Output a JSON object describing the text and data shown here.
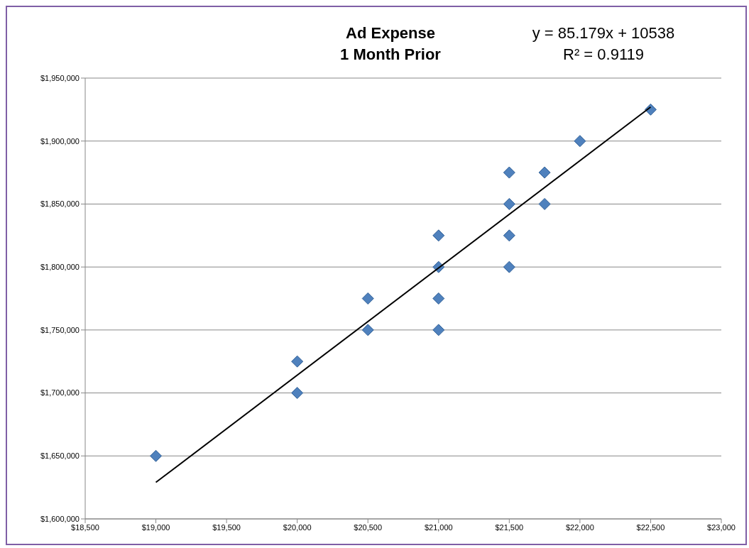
{
  "chart_data": {
    "type": "scatter",
    "title": "Ad Expense\n1 Month Prior",
    "annotations": [
      "y = 85.179x + 10538",
      "R² = 0.9119"
    ],
    "series": [
      {
        "marker": "diamond",
        "color": "#4f81bd",
        "x": [
          19000,
          20000,
          20000,
          20500,
          20500,
          21000,
          21000,
          21000,
          21000,
          21500,
          21500,
          21500,
          21500,
          21750,
          21750,
          22000,
          22500
        ],
        "values": [
          1650000,
          1725000,
          1700000,
          1775000,
          1750000,
          1825000,
          1800000,
          1775000,
          1750000,
          1875000,
          1850000,
          1825000,
          1800000,
          1875000,
          1850000,
          1900000,
          1925000
        ]
      },
      {
        "type": "line",
        "marker": "none",
        "color": "#000000",
        "x": [
          19000,
          22500
        ],
        "values": [
          1629000,
          1927000
        ]
      }
    ],
    "xlim": [
      18500,
      23000
    ],
    "xticks": [
      {
        "value": 18500,
        "label": "$18,500"
      },
      {
        "value": 19000,
        "label": "$19,000"
      },
      {
        "value": 19500,
        "label": "$19,500"
      },
      {
        "value": 20000,
        "label": "$20,000"
      },
      {
        "value": 20500,
        "label": "$20,500"
      },
      {
        "value": 21000,
        "label": "$21,000"
      },
      {
        "value": 21500,
        "label": "$21,500"
      },
      {
        "value": 22000,
        "label": "$22,000"
      },
      {
        "value": 22500,
        "label": "$22,500"
      },
      {
        "value": 23000,
        "label": "$23,000"
      }
    ],
    "ylim": [
      1600000,
      1950000
    ],
    "yticks": [
      {
        "value": 1600000,
        "label": "$1,600,000"
      },
      {
        "value": 1650000,
        "label": "$1,650,000"
      },
      {
        "value": 1700000,
        "label": "$1,700,000"
      },
      {
        "value": 1750000,
        "label": "$1,750,000"
      },
      {
        "value": 1800000,
        "label": "$1,800,000"
      },
      {
        "value": 1850000,
        "label": "$1,850,000"
      },
      {
        "value": 1900000,
        "label": "$1,900,000"
      },
      {
        "value": 1950000,
        "label": "$1,950,000"
      }
    ],
    "grid": "y",
    "line_style": "solid"
  }
}
